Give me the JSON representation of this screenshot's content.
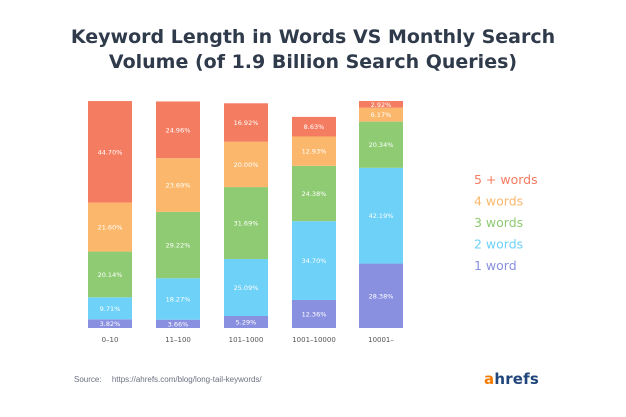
{
  "title_line1": "Keyword Length in Words VS Monthly Search",
  "title_line2": "Volume (of 1.9 Billion Search Queries)",
  "source_label": "Source:",
  "source_url": "https://ahrefs.com/blog/long-tail-keywords/",
  "brand_first": "a",
  "brand_rest": "hrefs",
  "colors": {
    "5_plus_words": "#f47c60",
    "4_words": "#fbb86c",
    "3_words": "#8ecb72",
    "2_words": "#6ed1f7",
    "1_word": "#8a90e0",
    "title": "#2f3a4b",
    "brand_orange": "#f57c00",
    "brand_blue": "#20457a"
  },
  "chart_data": {
    "type": "bar",
    "stacked": true,
    "categories": [
      "0–10",
      "11–100",
      "101–1000",
      "1001–10000",
      "10001–"
    ],
    "series": [
      {
        "name": "1 word",
        "color": "#8a90e0",
        "values": [
          3.82,
          3.66,
          5.29,
          12.36,
          28.38
        ],
        "labels": [
          "3.82%",
          "3.66%",
          "5.29%",
          "12.36%",
          "28.38%"
        ]
      },
      {
        "name": "2 words",
        "color": "#6ed1f7",
        "values": [
          9.71,
          18.27,
          25.09,
          34.7,
          42.19
        ],
        "labels": [
          "9.71%",
          "18.27%",
          "25.09%",
          "34.70%",
          "42.19%"
        ]
      },
      {
        "name": "3 words",
        "color": "#8ecb72",
        "values": [
          20.14,
          29.22,
          31.69,
          24.38,
          20.34
        ],
        "labels": [
          "20.14%",
          "29.22%",
          "31.69%",
          "24.38%",
          "20.34%"
        ]
      },
      {
        "name": "4 words",
        "color": "#fbb86c",
        "values": [
          21.6,
          23.69,
          20.0,
          12.93,
          6.17
        ],
        "labels": [
          "21.60%",
          "23.69%",
          "20.00%",
          "12.93%",
          "6.17%"
        ]
      },
      {
        "name": "5 + words",
        "color": "#f47c60",
        "values": [
          44.7,
          24.96,
          16.92,
          8.63,
          2.92
        ],
        "labels": [
          "44.70%",
          "24.96%",
          "16.92%",
          "8.63%",
          "2.92%"
        ]
      }
    ],
    "legend": [
      "5 + words",
      "4 words",
      "3 words",
      "2 words",
      "1 word"
    ],
    "legend_position": "right",
    "ylim": [
      0,
      100
    ],
    "grid": false
  }
}
